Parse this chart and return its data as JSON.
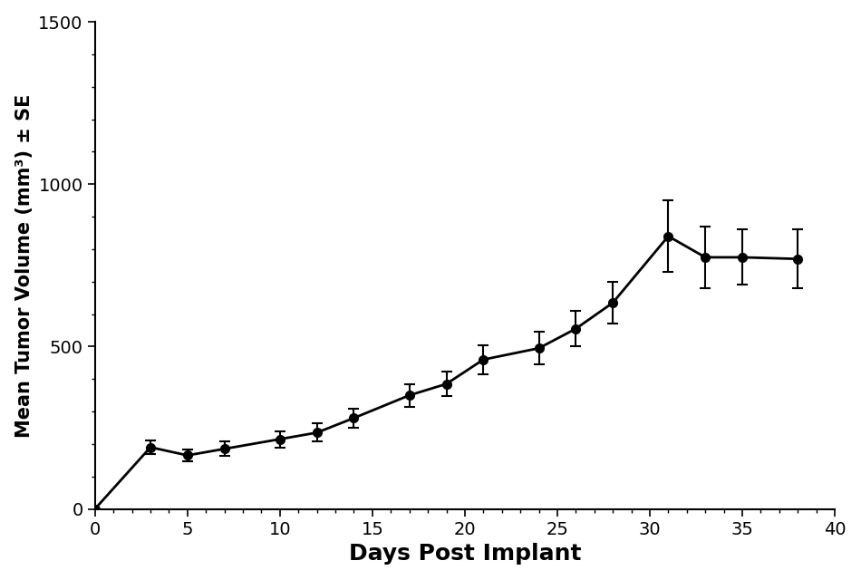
{
  "x": [
    0,
    3,
    5,
    7,
    10,
    12,
    14,
    17,
    19,
    21,
    24,
    26,
    28,
    31,
    33,
    35,
    38
  ],
  "y": [
    0,
    190,
    165,
    185,
    215,
    235,
    280,
    350,
    385,
    460,
    495,
    555,
    635,
    840,
    775,
    775,
    770
  ],
  "yerr": [
    0,
    20,
    18,
    22,
    25,
    28,
    30,
    35,
    38,
    45,
    50,
    55,
    65,
    110,
    95,
    85,
    90
  ],
  "xlabel": "Days Post Implant",
  "ylabel": "Mean Tumor Volume (mm³) ± SE",
  "xlim": [
    0,
    40
  ],
  "ylim": [
    0,
    1500
  ],
  "xticks": [
    0,
    5,
    10,
    15,
    20,
    25,
    30,
    35,
    40
  ],
  "yticks": [
    0,
    500,
    1000,
    1500
  ],
  "line_color": "#000000",
  "marker": "o",
  "marker_size": 7,
  "line_width": 2.0,
  "elinewidth": 1.5,
  "capsize": 4,
  "background_color": "#ffffff",
  "xlabel_fontsize": 18,
  "ylabel_fontsize": 15,
  "tick_fontsize": 14
}
